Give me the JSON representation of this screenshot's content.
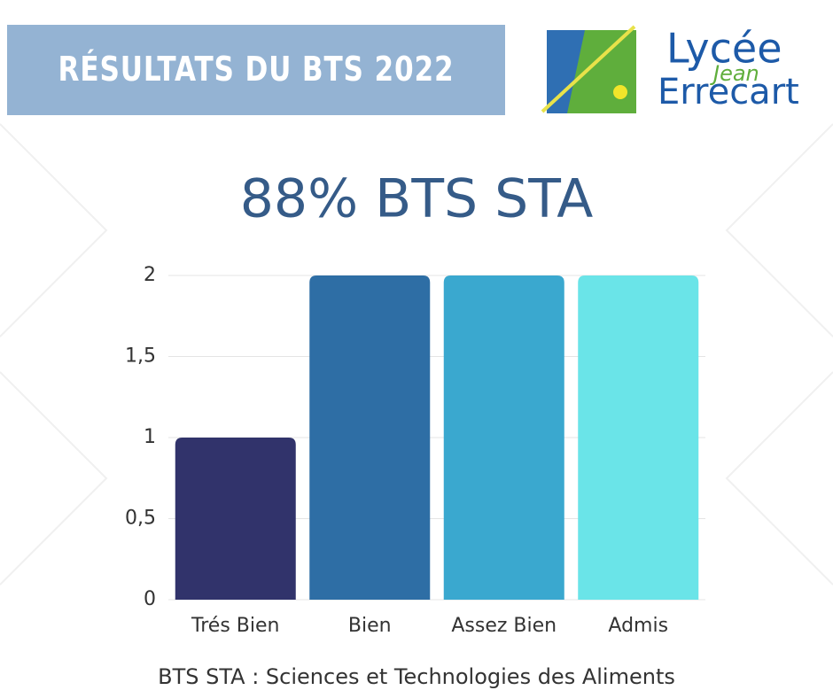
{
  "header": {
    "banner": "RÉSULTATS DU BTS 2022",
    "logo": [
      "Lycée",
      "Jean",
      "Errecart"
    ]
  },
  "chart_data": {
    "type": "bar",
    "title": "88% BTS STA",
    "caption": "BTS STA : Sciences et Technologies des Aliments",
    "categories": [
      "Trés Bien",
      "Bien",
      "Assez Bien",
      "Admis"
    ],
    "values": [
      1,
      2,
      2,
      2
    ],
    "colors": [
      "#31336b",
      "#2e6ea5",
      "#3aa8cf",
      "#6ae4e8"
    ],
    "ylim": [
      0,
      2
    ],
    "yticks": [
      0,
      {
        "value": 0.5,
        "label": "0,5"
      },
      1,
      {
        "value": 1.5,
        "label": "1,5"
      },
      2
    ],
    "grid": true
  }
}
